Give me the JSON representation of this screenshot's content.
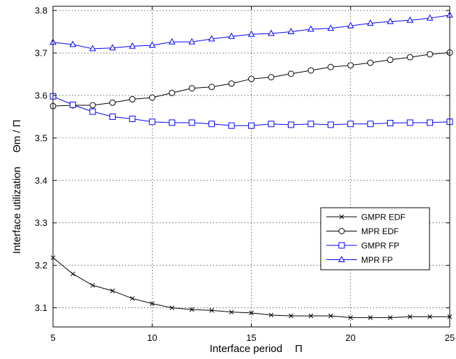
{
  "chart_data": {
    "type": "line",
    "xlabel": "Interface period",
    "xlabel_symbol": "Π",
    "ylabel": "Interface utilization",
    "ylabel_symbol": "Θm / Π",
    "xlim": [
      5,
      25
    ],
    "ylim": [
      3.055,
      3.81
    ],
    "xticks": [
      5,
      10,
      15,
      20,
      25
    ],
    "yticks": [
      3.1,
      3.2,
      3.3,
      3.4,
      3.5,
      3.6,
      3.7,
      3.8
    ],
    "ytick_labels": [
      "3.1",
      "3.2",
      "3.3",
      "3.4",
      "3.5",
      "3.6",
      "3.7",
      "3.8"
    ],
    "grid": true,
    "legend_position": "lower-right",
    "x": [
      5,
      6,
      7,
      8,
      9,
      10,
      11,
      12,
      13,
      14,
      15,
      16,
      17,
      18,
      19,
      20,
      21,
      22,
      23,
      24,
      25
    ],
    "series": [
      {
        "name": "GMPR EDF",
        "color": "#000000",
        "marker": "x",
        "values": [
          3.218,
          3.18,
          3.153,
          3.14,
          3.122,
          3.11,
          3.1,
          3.096,
          3.094,
          3.09,
          3.088,
          3.083,
          3.081,
          3.081,
          3.081,
          3.077,
          3.077,
          3.077,
          3.079,
          3.079,
          3.079
        ]
      },
      {
        "name": "MPR EDF",
        "color": "#000000",
        "marker": "circle",
        "values": [
          3.575,
          3.577,
          3.577,
          3.583,
          3.591,
          3.595,
          3.606,
          3.617,
          3.62,
          3.628,
          3.639,
          3.643,
          3.651,
          3.659,
          3.667,
          3.671,
          3.677,
          3.684,
          3.69,
          3.697,
          3.701
        ]
      },
      {
        "name": "GMPR FP",
        "color": "#0000ff",
        "marker": "square",
        "values": [
          3.598,
          3.578,
          3.562,
          3.55,
          3.545,
          3.538,
          3.536,
          3.536,
          3.533,
          3.529,
          3.529,
          3.533,
          3.531,
          3.533,
          3.531,
          3.533,
          3.533,
          3.535,
          3.536,
          3.536,
          3.538
        ]
      },
      {
        "name": "MPR FP",
        "color": "#0000ff",
        "marker": "triangle",
        "values": [
          3.725,
          3.72,
          3.71,
          3.712,
          3.716,
          3.718,
          3.726,
          3.726,
          3.733,
          3.739,
          3.744,
          3.746,
          3.75,
          3.756,
          3.758,
          3.764,
          3.77,
          3.774,
          3.777,
          3.782,
          3.789
        ]
      }
    ]
  }
}
